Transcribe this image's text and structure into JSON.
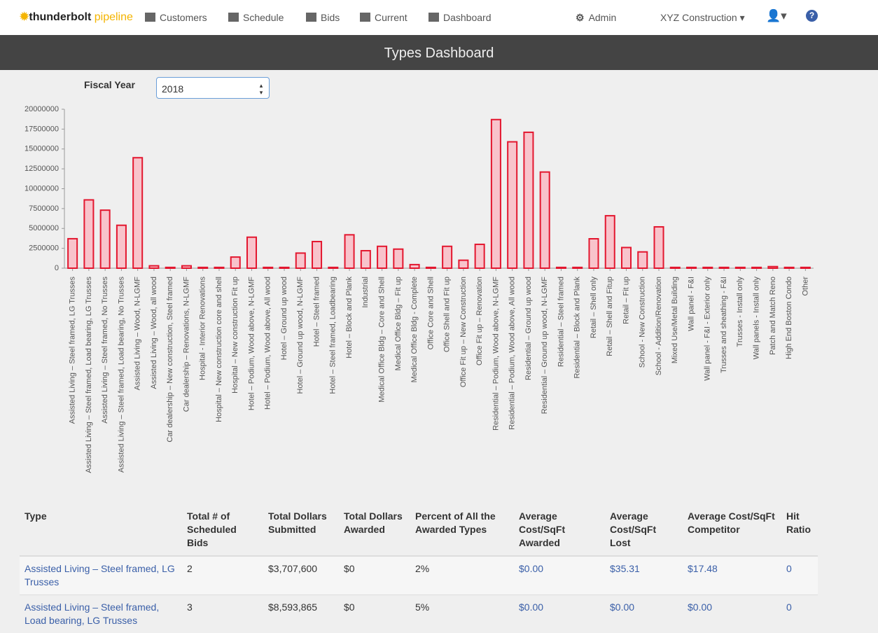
{
  "nav": {
    "brand_bold": "thunderbolt",
    "brand_light": "pipeline",
    "items": [
      "Customers",
      "Schedule",
      "Bids",
      "Current",
      "Dashboard"
    ],
    "admin": "Admin",
    "company": "XYZ Construction"
  },
  "header": {
    "title": "Types Dashboard"
  },
  "filter": {
    "label": "Fiscal Year",
    "value": "2018"
  },
  "chart_data": {
    "type": "bar",
    "color": "#f8c3cb",
    "edge_color": "#e3172f",
    "categories": [
      "Assisted Living – Steel framed, LG Trusses",
      "Assisted Living – Steel framed, Load bearing, LG Trusses",
      "Assisted Living – Steel framed, No Trusses",
      "Assisted Living – Steel framed, Load bearing, No Trusses",
      "Assisted Living – Wood, N-LGMF",
      "Assisted Living – Wood, all wood",
      "Car dealership – New construction, Steel framed",
      "Car dealership – Renovations, N-LGMF",
      "Hospital - Interior Renovations",
      "Hospital – New construction core and shell",
      "Hospital – New construction Fit up",
      "Hotel – Podium, Wood above, N-LGMF",
      "Hotel – Podium, Wood above, All wood",
      "Hotel – Ground up wood",
      "Hotel – Ground up wood, N-LGMF",
      "Hotel – Steel framed",
      "Hotel – Steel framed, Loadbearing",
      "Hotel – Block and Plank",
      "Industrial",
      "Medical Office Bldg – Core and Shell",
      "Medical Office Bldg – Fit up",
      "Medical Office Bldg - Complete",
      "Office Core and Shell",
      "Office Shell and Fit up",
      "Office Fit up – New Construction",
      "Office Fit up – Renovation",
      "Residential – Podium, Wood above, N-LGMF",
      "Residential – Podium, Wood above, All wood",
      "Residential – Ground up wood",
      "Residential – Ground up wood, N-LGMF",
      "Residential – Steel framed",
      "Residential – Block and Plank",
      "Retail – Shell only",
      "Retail – Shell and Fitup",
      "Retail – Fit up",
      "School - New Construction",
      "School - Addition/Renovation",
      "Mixed Use/Metal Building",
      "Wall panel - F&I",
      "Wall panel - F&I - Exterior only",
      "Trusses and sheathing - F&I",
      "Trusses - Install only",
      "Wall panels - Install only",
      "Patch and Match Reno",
      "High End Boston Condo",
      "Other"
    ],
    "values": [
      3707600,
      8593865,
      7300000,
      5400000,
      13900000,
      300000,
      100000,
      300000,
      100000,
      100000,
      1400000,
      3900000,
      100000,
      100000,
      1900000,
      3350000,
      100000,
      4200000,
      2200000,
      2750000,
      2400000,
      450000,
      100000,
      2750000,
      1000000,
      3000000,
      18700000,
      15900000,
      17100000,
      12100000,
      100000,
      100000,
      3700000,
      6600000,
      2600000,
      2050000,
      5200000,
      100000,
      100000,
      100000,
      100000,
      100000,
      100000,
      200000,
      100000,
      100000
    ],
    "ylim": [
      0,
      20000000
    ],
    "yticks": [
      0,
      2500000,
      5000000,
      7500000,
      10000000,
      12500000,
      15000000,
      17500000,
      20000000
    ],
    "grid": false
  },
  "table": {
    "columns": [
      "Type",
      "Total # of Scheduled Bids",
      "Total Dollars Submitted",
      "Total Dollars Awarded",
      "Percent of All the Awarded Types",
      "Average Cost/SqFt Awarded",
      "Average Cost/SqFt Lost",
      "Average Cost/SqFt Competitor",
      "Hit Ratio"
    ],
    "rows": [
      [
        "Assisted Living – Steel framed, LG Trusses",
        "2",
        "$3,707,600",
        "$0",
        "2%",
        "$0.00",
        "$35.31",
        "$17.48",
        "0"
      ],
      [
        "Assisted Living – Steel framed, Load bearing, LG Trusses",
        "3",
        "$8,593,865",
        "$0",
        "5%",
        "$0.00",
        "$0.00",
        "$0.00",
        "0"
      ]
    ]
  }
}
